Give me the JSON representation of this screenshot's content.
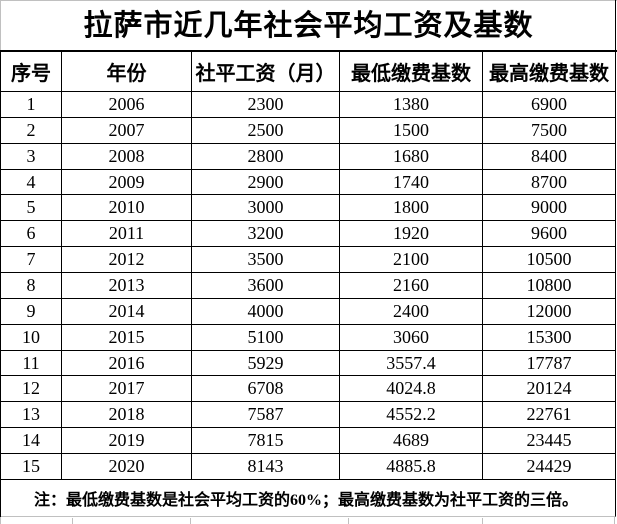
{
  "title": "拉萨市近几年社会平均工资及基数",
  "table": {
    "columns": [
      "序号",
      "年份",
      "社平工资（月）",
      "最低缴费基数",
      "最高缴费基数"
    ],
    "rows": [
      [
        "1",
        "2006",
        "2300",
        "1380",
        "6900"
      ],
      [
        "2",
        "2007",
        "2500",
        "1500",
        "7500"
      ],
      [
        "3",
        "2008",
        "2800",
        "1680",
        "8400"
      ],
      [
        "4",
        "2009",
        "2900",
        "1740",
        "8700"
      ],
      [
        "5",
        "2010",
        "3000",
        "1800",
        "9000"
      ],
      [
        "6",
        "2011",
        "3200",
        "1920",
        "9600"
      ],
      [
        "7",
        "2012",
        "3500",
        "2100",
        "10500"
      ],
      [
        "8",
        "2013",
        "3600",
        "2160",
        "10800"
      ],
      [
        "9",
        "2014",
        "4000",
        "2400",
        "12000"
      ],
      [
        "10",
        "2015",
        "5100",
        "3060",
        "15300"
      ],
      [
        "11",
        "2016",
        "5929",
        "3557.4",
        "17787"
      ],
      [
        "12",
        "2017",
        "6708",
        "4024.8",
        "20124"
      ],
      [
        "13",
        "2018",
        "7587",
        "4552.2",
        "22761"
      ],
      [
        "14",
        "2019",
        "7815",
        "4689",
        "23445"
      ],
      [
        "15",
        "2020",
        "8143",
        "4885.8",
        "24429"
      ]
    ],
    "note": "注：最低缴费基数是社会平均工资的60%；最高缴费基数为社平工资的三倍。"
  },
  "colors": {
    "border_black": "#000000",
    "gridline_gray": "#c0c0c0",
    "background": "#ffffff",
    "text": "#000000"
  }
}
